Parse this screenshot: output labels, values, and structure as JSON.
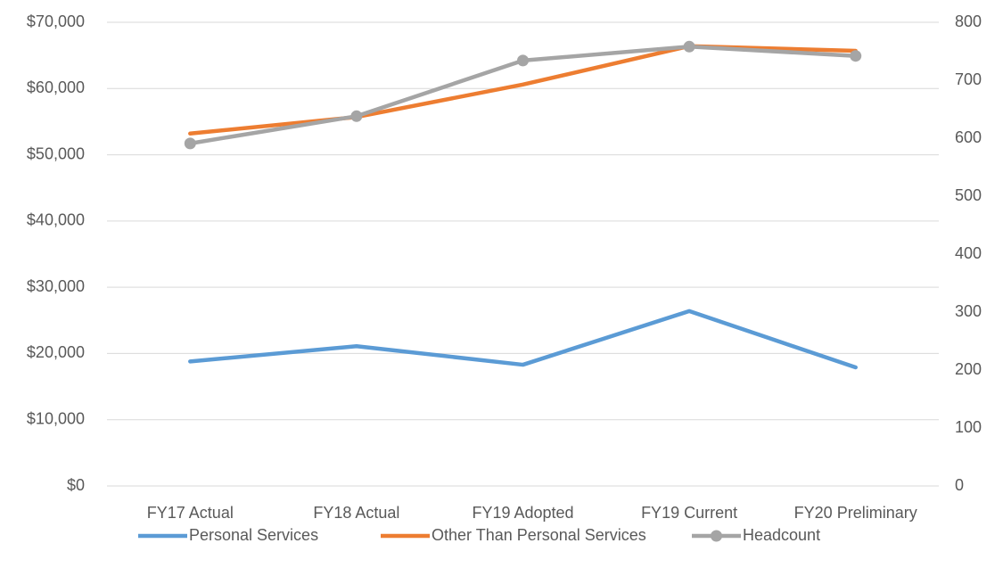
{
  "chart_data": {
    "type": "line",
    "categories": [
      "FY17 Actual",
      "FY18 Actual",
      "FY19 Adopted",
      "FY19 Current",
      "FY20 Preliminary"
    ],
    "series": [
      {
        "name": "Personal Services",
        "color": "#5b9bd5",
        "values": [
          18800,
          21100,
          18300,
          26400,
          17900
        ]
      },
      {
        "name": "Other Than Personal Services",
        "color": "#ed7d31",
        "values": [
          53200,
          55700,
          60600,
          66400,
          65700
        ]
      },
      {
        "name": "Headcount",
        "color": "#a5a5a5",
        "axis": "y2",
        "marker": true,
        "values": [
          591,
          638,
          734,
          758,
          742
        ]
      }
    ],
    "ylim": [
      0,
      70000
    ],
    "yticks": [
      {
        "value": 0,
        "label": "$0"
      },
      {
        "value": 10000,
        "label": "$10,000"
      },
      {
        "value": 20000,
        "label": "$20,000"
      },
      {
        "value": 30000,
        "label": "$30,000"
      },
      {
        "value": 40000,
        "label": "$40,000"
      },
      {
        "value": 50000,
        "label": "$50,000"
      },
      {
        "value": 60000,
        "label": "$60,000"
      },
      {
        "value": 70000,
        "label": "$70,000"
      }
    ],
    "y2lim": [
      0,
      800
    ],
    "y2ticks": [
      0,
      100,
      200,
      300,
      400,
      500,
      600,
      700,
      800
    ],
    "grid": true,
    "legend": "bottom"
  }
}
